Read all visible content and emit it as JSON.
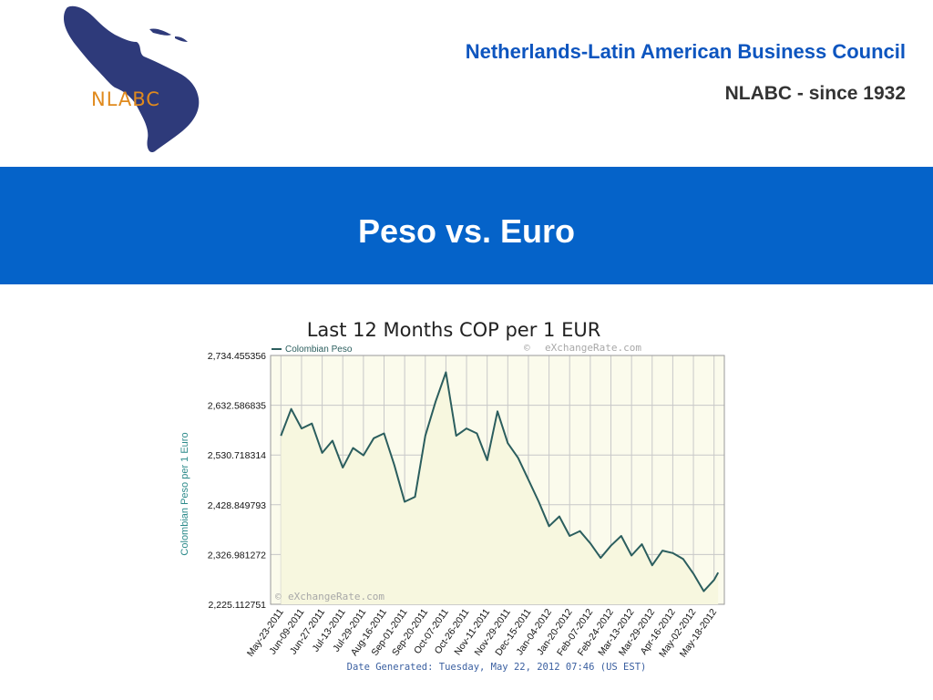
{
  "header": {
    "org_title": "Netherlands-Latin American Business Council",
    "org_subtitle": "NLABC - since 1932",
    "logo_text": "NLABC"
  },
  "banner": {
    "title": "Peso vs. Euro"
  },
  "colors": {
    "banner": "#0563c9",
    "org_title": "#0d55bf",
    "series_line": "#2b5e5e",
    "plot_fill": "#fbfbec",
    "logo_map": "#2e3a7a",
    "logo_text": "#e08a1e"
  },
  "chart_data": {
    "type": "area",
    "title": "Last 12 Months COP per 1 EUR",
    "ylabel": "Colombian Peso per 1 Euro",
    "watermark": "eXchangeRate.com",
    "footer": "Date Generated: Tuesday, May 22, 2012 07:46 (US EST)",
    "ylim": [
      2225.112751,
      2734.455356
    ],
    "yticks": [
      "2,734.455356",
      "2,632.586835",
      "2,530.718314",
      "2,428.849793",
      "2,326.981272",
      "2,225.112751"
    ],
    "ytick_values": [
      2734.455356,
      2632.586835,
      2530.718314,
      2428.849793,
      2326.981272,
      2225.112751
    ],
    "xticks": [
      "May-23-2011",
      "Jun-09-2011",
      "Jun-27-2011",
      "Jul-13-2011",
      "Jul-29-2011",
      "Aug-16-2011",
      "Sep-01-2011",
      "Sep-20-2011",
      "Oct-07-2011",
      "Oct-26-2011",
      "Nov-11-2011",
      "Nov-29-2011",
      "Dec-15-2011",
      "Jan-04-2012",
      "Jan-20-2012",
      "Feb-07-2012",
      "Feb-24-2012",
      "Mar-13-2012",
      "Mar-29-2012",
      "Apr-16-2012",
      "May-02-2012",
      "May-18-2012"
    ],
    "grid": true,
    "legend": "top-left",
    "series": [
      {
        "name": "Colombian Peso",
        "x": [
          0.0,
          0.5,
          1.0,
          1.5,
          2.0,
          2.5,
          3.0,
          3.5,
          4.0,
          4.5,
          5.0,
          5.5,
          6.0,
          6.5,
          7.0,
          7.5,
          8.0,
          8.5,
          9.0,
          9.5,
          10.0,
          10.5,
          11.0,
          11.5,
          12.0,
          12.5,
          13.0,
          13.5,
          14.0,
          14.5,
          15.0,
          15.5,
          16.0,
          16.5,
          17.0,
          17.5,
          18.0,
          18.5,
          19.0,
          19.5,
          20.0,
          20.5,
          21.0,
          21.2
        ],
        "values": [
          2570,
          2625,
          2585,
          2595,
          2535,
          2560,
          2505,
          2545,
          2530,
          2565,
          2575,
          2510,
          2435,
          2445,
          2570,
          2640,
          2700,
          2570,
          2585,
          2575,
          2520,
          2620,
          2555,
          2525,
          2480,
          2435,
          2385,
          2405,
          2365,
          2375,
          2350,
          2320,
          2345,
          2365,
          2325,
          2348,
          2305,
          2335,
          2330,
          2318,
          2288,
          2252,
          2275,
          2290
        ]
      }
    ]
  }
}
